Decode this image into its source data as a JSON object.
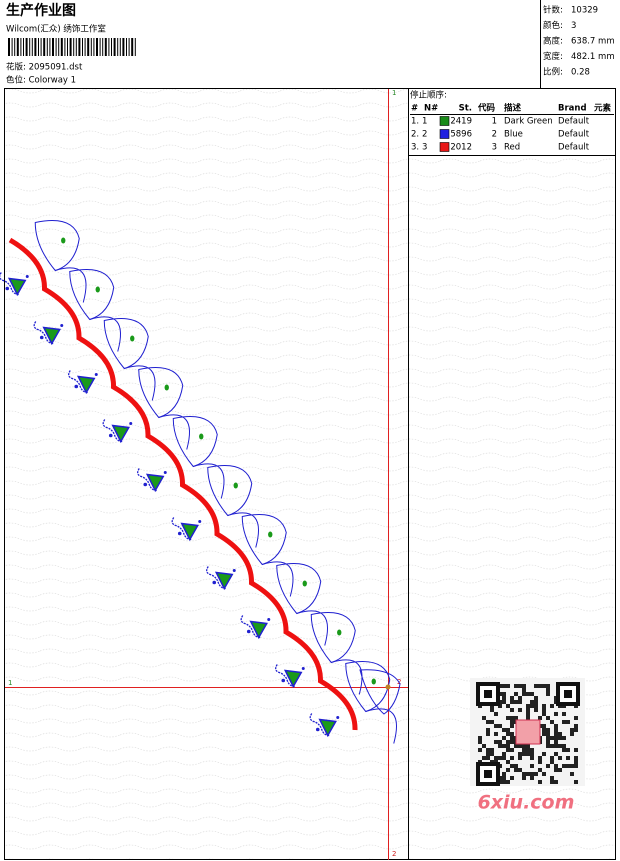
{
  "header": {
    "title": "生产作业图",
    "subtitle": "Wilcom(汇众) 绣饰工作室",
    "design": "花版: 2095091.dst",
    "colorway": "色位: Colorway 1"
  },
  "stats": [
    {
      "label": "针数:",
      "value": "10329"
    },
    {
      "label": "颜色:",
      "value": "3"
    },
    {
      "label": "高度:",
      "value": "638.7 mm"
    },
    {
      "label": "宽度:",
      "value": "482.1 mm"
    },
    {
      "label": "比例:",
      "value": "0.28"
    }
  ],
  "stop_sequence": {
    "title": "停止顺序:",
    "columns": [
      "#",
      "N#",
      "St.",
      "代码",
      "描述",
      "Brand",
      "元素"
    ],
    "rows": [
      {
        "index": "1.",
        "n": "1",
        "st": "2419",
        "code": "1",
        "description": "Dark Green",
        "brand": "Default",
        "color": "#1a8c1a"
      },
      {
        "index": "2.",
        "n": "2",
        "st": "5896",
        "code": "2",
        "description": "Blue",
        "brand": "Default",
        "color": "#1f1fe0"
      },
      {
        "index": "3.",
        "n": "3",
        "st": "2012",
        "code": "3",
        "description": "Red",
        "brand": "Default",
        "color": "#e81818"
      }
    ]
  },
  "guides": {
    "vertical_top": "1",
    "vertical_bottom": "2",
    "horizontal_left": "1",
    "horizontal_right": "2"
  },
  "watermark": "6xiu.com"
}
